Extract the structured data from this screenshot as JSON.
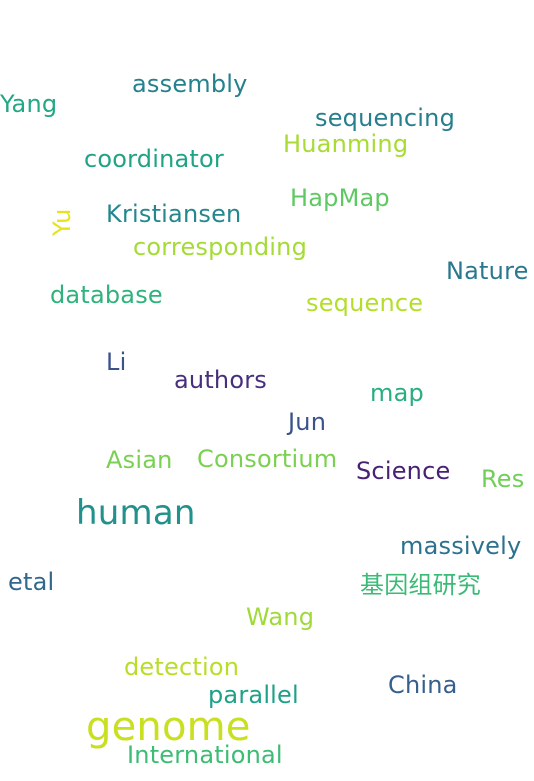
{
  "words": {
    "assembly": {
      "text": "assembly",
      "color": "#26818e"
    },
    "yang": {
      "text": "Yang",
      "color": "#22a884"
    },
    "sequencing": {
      "text": "sequencing",
      "color": "#277f8e"
    },
    "huanming": {
      "text": "Huanming",
      "color": "#a8db34"
    },
    "coordinator": {
      "text": "coordinator",
      "color": "#20a386"
    },
    "hapmap": {
      "text": "HapMap",
      "color": "#5ec962"
    },
    "kristiansen": {
      "text": "Kristiansen",
      "color": "#24878e"
    },
    "yu": {
      "text": "Yu",
      "color": "#e6e419"
    },
    "corresponding": {
      "text": "corresponding",
      "color": "#a5db36"
    },
    "nature": {
      "text": "Nature",
      "color": "#2a788e"
    },
    "database": {
      "text": "database",
      "color": "#2eb37c"
    },
    "sequence": {
      "text": "sequence",
      "color": "#b5de2b"
    },
    "li": {
      "text": "Li",
      "color": "#3b528b"
    },
    "authors": {
      "text": "authors",
      "color": "#472f7d"
    },
    "map": {
      "text": "map",
      "color": "#28ae80"
    },
    "jun": {
      "text": "Jun",
      "color": "#3b528b"
    },
    "asian": {
      "text": "Asian",
      "color": "#7ad151"
    },
    "consortium": {
      "text": "Consortium",
      "color": "#7ad151"
    },
    "science": {
      "text": "Science",
      "color": "#482173"
    },
    "res": {
      "text": "Res",
      "color": "#70cf57"
    },
    "human": {
      "text": "human",
      "color": "#21918c"
    },
    "massively": {
      "text": "massively",
      "color": "#2c728e"
    },
    "etal": {
      "text": "etal",
      "color": "#31688e"
    },
    "jiyinzu": {
      "text": "基因组研究",
      "color": "#3aba76"
    },
    "wang": {
      "text": "Wang",
      "color": "#a0da39"
    },
    "detection": {
      "text": "detection",
      "color": "#b8de29"
    },
    "china": {
      "text": "China",
      "color": "#355f8d"
    },
    "parallel": {
      "text": "parallel",
      "color": "#1fa187"
    },
    "genome": {
      "text": "genome",
      "color": "#c8e020"
    },
    "international": {
      "text": "International",
      "color": "#3dbc74"
    }
  }
}
